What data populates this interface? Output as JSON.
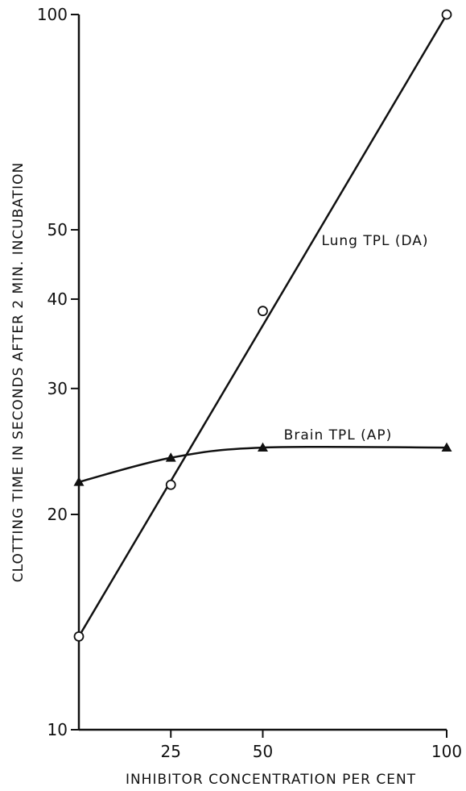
{
  "chart_data": {
    "type": "line",
    "xlabel": "INHIBITOR CONCENTRATION PER CENT",
    "ylabel": "CLOTTING TIME IN SECONDS AFTER 2 MIN. INCUBATION",
    "yscale": "log",
    "ylim": [
      10,
      100
    ],
    "xlim": [
      0,
      100
    ],
    "x_ticks": [
      25,
      50,
      100
    ],
    "y_ticks": [
      10,
      20,
      30,
      40,
      50,
      100
    ],
    "grid": false,
    "legend": "none (series labeled inline)",
    "series": [
      {
        "name": "Lung TPL (DA)",
        "marker": "open-circle",
        "color": "#111111",
        "x": [
          0,
          25,
          50,
          100
        ],
        "y": [
          13.5,
          22,
          38.5,
          100
        ]
      },
      {
        "name": "Brain TPL (AP)",
        "marker": "filled-triangle",
        "color": "#111111",
        "x": [
          0,
          25,
          50,
          100
        ],
        "y": [
          22.2,
          24,
          24.8,
          24.8
        ]
      }
    ]
  }
}
